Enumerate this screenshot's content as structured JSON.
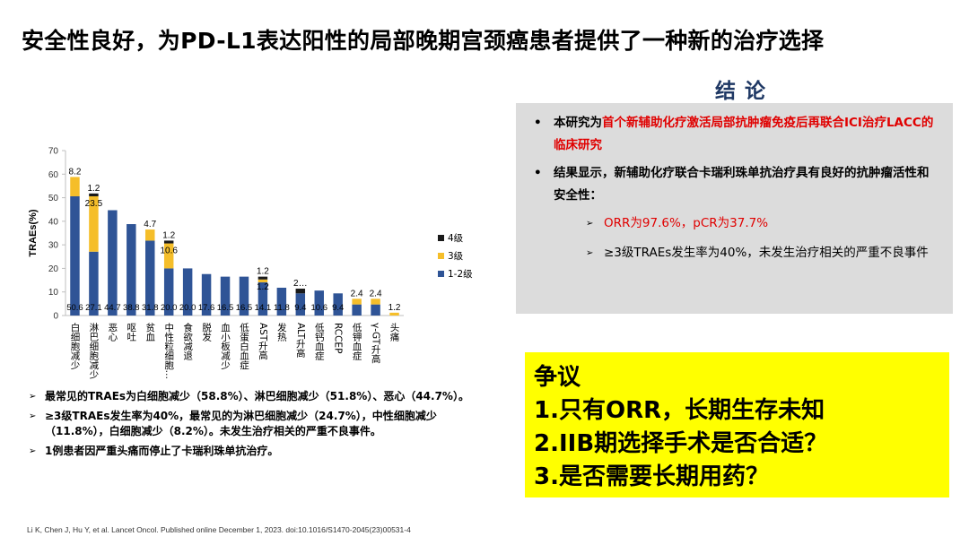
{
  "title": "安全性良好，为PD-L1表达阳性的局部晚期宫颈癌患者提供了一种新的治疗选择",
  "colors": {
    "grade12": "#2f5496",
    "grade3": "#f5be2a",
    "grade4": "#1a1a1a",
    "highlight": "#e00000",
    "box_grey": "#dcdcdc",
    "box_yellow": "#ffff00"
  },
  "chart_data": {
    "type": "bar",
    "stacked": true,
    "ylabel": "TRAEs(%)",
    "ylim": [
      0,
      70
    ],
    "yticks": [
      0,
      10,
      20,
      30,
      40,
      50,
      60,
      70
    ],
    "legend_position": "right",
    "categories": [
      "白细胞减少",
      "淋巴细胞减少",
      "恶心",
      "呕吐",
      "贫血",
      "中性粒细胞…",
      "食欲减退",
      "脱发",
      "血小板减少",
      "低蛋白血症",
      "AST升高",
      "发热",
      "ALT升高",
      "低钙血症",
      "RCCEP",
      "低钾血症",
      "γ-GT升高",
      "头痛"
    ],
    "series": [
      {
        "name": "4级",
        "values": [
          0,
          1.2,
          0,
          0,
          0,
          1.2,
          0,
          0,
          0,
          0,
          1.2,
          0,
          2.0,
          0,
          0,
          0,
          0,
          0
        ]
      },
      {
        "name": "3级",
        "values": [
          8.2,
          23.5,
          0,
          0,
          4.7,
          10.6,
          0,
          0,
          0,
          0,
          1.2,
          0,
          0,
          0,
          0,
          2.4,
          2.4,
          1.2
        ]
      },
      {
        "name": "1-2级",
        "values": [
          50.6,
          27.1,
          44.7,
          38.8,
          31.8,
          20.0,
          20.0,
          17.6,
          16.5,
          16.5,
          14.1,
          11.8,
          9.4,
          10.6,
          9.4,
          4.7,
          4.7,
          0
        ]
      }
    ],
    "data_labels": {
      "grade12": [
        "50.6",
        "27.1",
        "44.7",
        "38.8",
        "31.8",
        "20.0",
        "20.0",
        "17.6",
        "16.5",
        "16.5",
        "14.1",
        "11.8",
        "9.4",
        "10.6",
        "9.4",
        "",
        "",
        ""
      ],
      "grade3": [
        "8.2",
        "23.5",
        "",
        "",
        "4.7",
        "10.6",
        "",
        "",
        "",
        "",
        "1.2",
        "",
        "",
        "",
        "",
        "2.4",
        "2.4",
        "1.2"
      ],
      "grade4": [
        "",
        "1.2",
        "",
        "",
        "",
        "1.2",
        "",
        "",
        "",
        "",
        "1.2",
        "",
        "2…",
        "",
        "",
        "",
        "",
        ""
      ]
    }
  },
  "findings": [
    "最常见的TRAEs为白细胞减少（58.8%）、淋巴细胞减少（51.8%）、恶心（44.7%）。",
    "≥3级TRAEs发生率为40%，最常见的为淋巴细胞减少（24.7%），中性细胞减少（11.8%），白细胞减少（8.2%）。未发生治疗相关的严重不良事件。",
    "1例患者因严重头痛而停止了卡瑞利珠单抗治疗。"
  ],
  "citation": "Li K, Chen J, Hu Y, et al. Lancet Oncol. Published online December 1, 2023. doi:10.1016/S1470-2045(23)00531-4",
  "conclusion": {
    "title": "结论",
    "item1_prefix": "本研究为",
    "item1_highlight": "首个新辅助化疗激活局部抗肿瘤免疫后再联合ICI治疗LACC的临床研究",
    "item2": "结果显示，新辅助化疗联合卡瑞利珠单抗治疗具有良好的抗肿瘤活性和安全性：",
    "sub1": "ORR为97.6%，pCR为37.7%",
    "sub2": "≥3级TRAEs发生率为40%，未发生治疗相关的严重不良事件"
  },
  "debate": {
    "heading": "争议",
    "items": [
      "1.只有ORR，长期生存未知",
      "2.IIB期选择手术是否合适？",
      "3.是否需要长期用药？"
    ]
  }
}
